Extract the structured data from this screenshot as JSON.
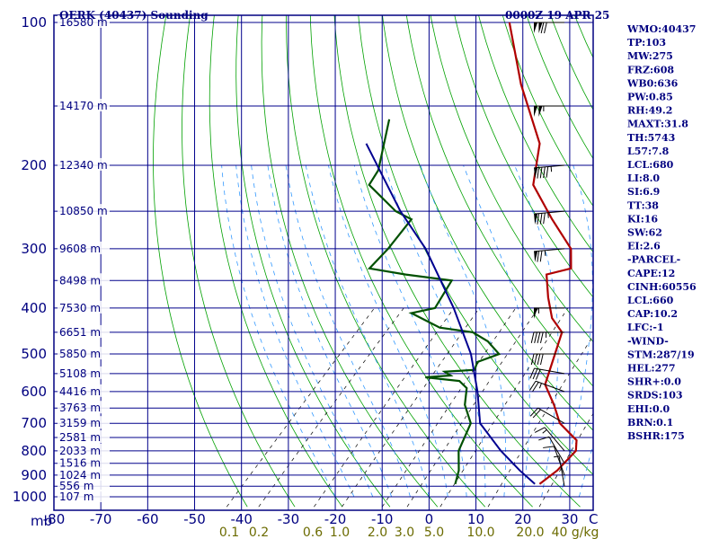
{
  "header": {
    "station": "OERK (40437) Sounding",
    "time": "0000Z 19 APR 25"
  },
  "chart_data": {
    "type": "line",
    "title": "OERK (40437) Sounding",
    "subtitle": "0000Z 19 APR 25",
    "x_axis": {
      "range": [
        -80,
        35
      ],
      "ticks": [
        -80,
        -70,
        -60,
        -50,
        -40,
        -30,
        -20,
        -10,
        0,
        10,
        20,
        30
      ],
      "unit_label": "C"
    },
    "y_axis": {
      "range": [
        100,
        1000
      ],
      "scale": "log",
      "ticks": [
        100,
        200,
        300,
        400,
        500,
        600,
        700,
        800,
        900,
        1000
      ],
      "unit_label": "mb"
    },
    "height_labels": [
      {
        "p": 100,
        "text": "16580 m"
      },
      {
        "p": 150,
        "text": "14170 m"
      },
      {
        "p": 200,
        "text": "12340 m"
      },
      {
        "p": 250,
        "text": "10850 m"
      },
      {
        "p": 300,
        "text": "9608 m"
      },
      {
        "p": 350,
        "text": "8498 m"
      },
      {
        "p": 400,
        "text": "7530 m"
      },
      {
        "p": 450,
        "text": "6651 m"
      },
      {
        "p": 500,
        "text": "5850 m"
      },
      {
        "p": 550,
        "text": "5108 m"
      },
      {
        "p": 600,
        "text": "4416 m"
      },
      {
        "p": 650,
        "text": "3763 m"
      },
      {
        "p": 700,
        "text": "3159 m"
      },
      {
        "p": 750,
        "text": "2581 m"
      },
      {
        "p": 800,
        "text": "2033 m"
      },
      {
        "p": 850,
        "text": "1516 m"
      },
      {
        "p": 900,
        "text": "1024 m"
      },
      {
        "p": 950,
        "text": "556 m"
      },
      {
        "p": 1000,
        "text": "107 m"
      }
    ],
    "mixing_ratio_labels": [
      "0.1",
      "0.2",
      "0.6",
      "1.0",
      "2.0",
      "3.0",
      "5.0",
      "10.0",
      "20.0",
      "40 g/kg"
    ],
    "mixing_ratio_values": [
      0.1,
      0.2,
      0.6,
      1.0,
      2.0,
      3.0,
      5.0,
      10.0,
      20.0,
      40.0
    ],
    "series": [
      {
        "kind": "temperature",
        "color": "#b00000",
        "points": [
          [
            100,
            -79
          ],
          [
            135,
            -64
          ],
          [
            180,
            -48
          ],
          [
            220,
            -41
          ],
          [
            260,
            -30
          ],
          [
            300,
            -20
          ],
          [
            330,
            -16
          ],
          [
            340,
            -20
          ],
          [
            380,
            -15
          ],
          [
            420,
            -10
          ],
          [
            450,
            -5
          ],
          [
            520,
            -1
          ],
          [
            580,
            2
          ],
          [
            640,
            8
          ],
          [
            700,
            13
          ],
          [
            760,
            20
          ],
          [
            800,
            22
          ],
          [
            840,
            22
          ],
          [
            880,
            22
          ],
          [
            940,
            21
          ]
        ]
      },
      {
        "kind": "dewpoint",
        "color": "#005000",
        "points": [
          [
            160,
            -85
          ],
          [
            205,
            -77
          ],
          [
            220,
            -76
          ],
          [
            250,
            -65
          ],
          [
            260,
            -60
          ],
          [
            300,
            -59
          ],
          [
            330,
            -59
          ],
          [
            340,
            -50
          ],
          [
            350,
            -39
          ],
          [
            400,
            -37
          ],
          [
            410,
            -41
          ],
          [
            440,
            -32
          ],
          [
            450,
            -24
          ],
          [
            470,
            -19
          ],
          [
            500,
            -14
          ],
          [
            520,
            -17
          ],
          [
            540,
            -16
          ],
          [
            545,
            -22
          ],
          [
            555,
            -20
          ],
          [
            560,
            -25
          ],
          [
            570,
            -17
          ],
          [
            590,
            -14
          ],
          [
            640,
            -11
          ],
          [
            700,
            -6
          ],
          [
            800,
            -3
          ],
          [
            880,
            1
          ],
          [
            940,
            3
          ]
        ]
      },
      {
        "kind": "parcel",
        "color": "#000090",
        "points": [
          [
            180,
            -85
          ],
          [
            250,
            -64
          ],
          [
            300,
            -51
          ],
          [
            400,
            -33
          ],
          [
            500,
            -20
          ],
          [
            600,
            -11
          ],
          [
            700,
            -4
          ],
          [
            800,
            6
          ],
          [
            880,
            14
          ],
          [
            940,
            20
          ]
        ]
      }
    ],
    "wind_barbs": [
      {
        "p": 100,
        "dir": 270,
        "speed": 120
      },
      {
        "p": 150,
        "dir": 270,
        "speed": 105
      },
      {
        "p": 200,
        "dir": 265,
        "speed": 95
      },
      {
        "p": 250,
        "dir": 265,
        "speed": 85
      },
      {
        "p": 300,
        "dir": 265,
        "speed": 75
      },
      {
        "p": 400,
        "dir": 270,
        "speed": 55
      },
      {
        "p": 450,
        "dir": 270,
        "speed": 45
      },
      {
        "p": 500,
        "dir": 270,
        "speed": 40
      },
      {
        "p": 550,
        "dir": 280,
        "speed": 30
      },
      {
        "p": 600,
        "dir": 290,
        "speed": 25
      },
      {
        "p": 700,
        "dir": 300,
        "speed": 20
      },
      {
        "p": 800,
        "dir": 320,
        "speed": 15
      },
      {
        "p": 850,
        "dir": 330,
        "speed": 12
      },
      {
        "p": 900,
        "dir": 340,
        "speed": 10
      },
      {
        "p": 950,
        "dir": 350,
        "speed": 8
      }
    ],
    "indices": [
      "WMO:40437",
      "TP:103",
      "MW:275",
      "FRZ:608",
      "WB0:636",
      "PW:0.85",
      "RH:49.2",
      "MAXT:31.8",
      "TH:5743",
      "L57:7.8",
      "LCL:680",
      "LI:8.0",
      "SI:6.9",
      "TT:38",
      "KI:16",
      "SW:62",
      "EI:2.6",
      "-PARCEL-",
      "CAPE:12",
      "CINH:60556",
      "LCL:660",
      "CAP:10.2",
      "LFC:-1",
      "-WIND-",
      "STM:287/19",
      "HEL:277",
      "SHR+:0.0",
      "SRDS:103",
      "EHI:0.0",
      "BRN:0.1",
      "BSHR:175"
    ]
  },
  "colors": {
    "background": "#ffffff",
    "grid": "#00008b",
    "frame": "#000080",
    "dry_adiabat": "#00a000",
    "moist_adiabat": "#3399ff",
    "mixing_ratio": "#000000",
    "temperature": "#b00000",
    "dewpoint": "#005000",
    "parcel": "#000090",
    "text": "#000080",
    "mix_text": "#6b6b00"
  }
}
